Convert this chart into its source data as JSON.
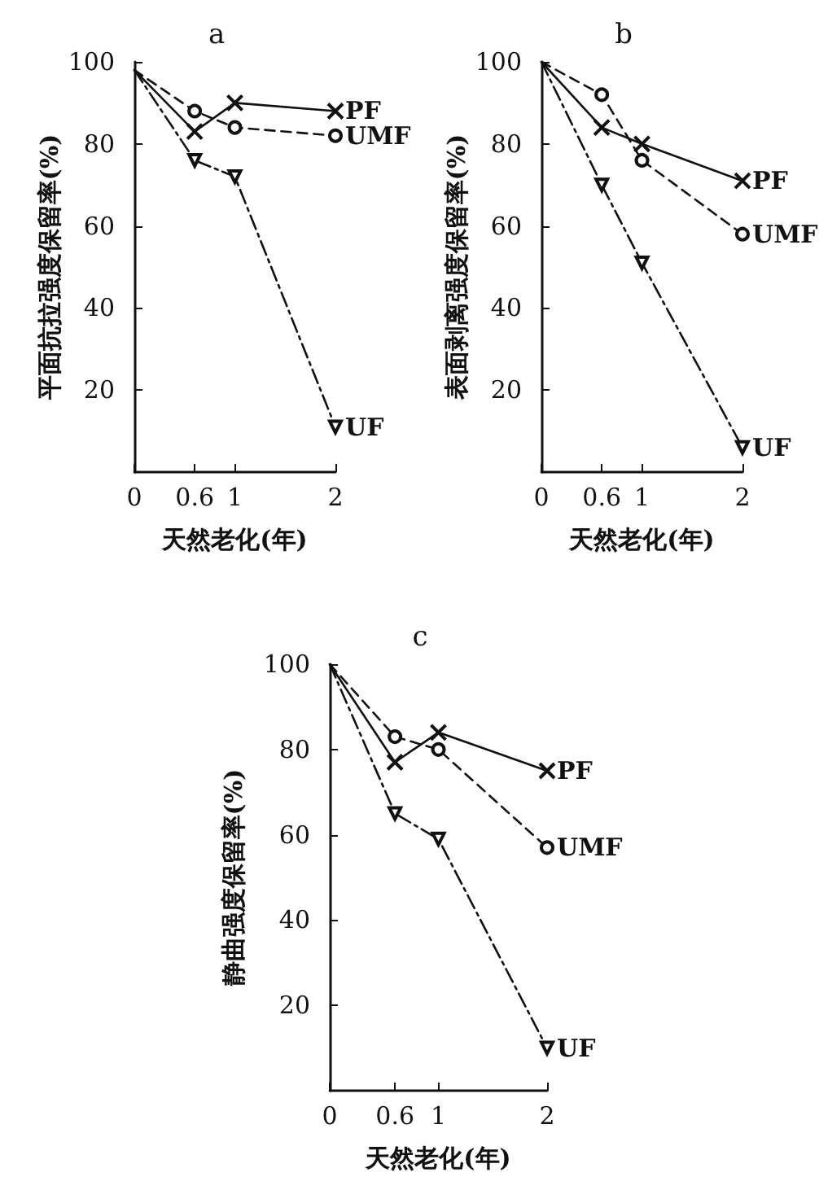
{
  "chart_data": [
    {
      "type": "line",
      "title": "a",
      "xlabel": "天然老化(年)",
      "ylabel": "平面抗拉强度保留率(%)",
      "x": [
        0,
        0.6,
        1,
        2
      ],
      "xlim": [
        0,
        2
      ],
      "xticks": [
        0,
        0.6,
        1,
        2
      ],
      "ylim": [
        0,
        100
      ],
      "yticks": [
        20,
        40,
        60,
        80,
        100
      ],
      "grid": false,
      "legend": false,
      "series": [
        {
          "name": "PF",
          "color": "#111111",
          "marker": "cross",
          "line_style": "solid",
          "values": [
            98,
            83,
            90,
            88
          ]
        },
        {
          "name": "UMF",
          "color": "#111111",
          "marker": "circle",
          "line_style": "dashed",
          "values": [
            98,
            88,
            84,
            82
          ]
        },
        {
          "name": "UF",
          "color": "#111111",
          "marker": "triangle",
          "line_style": "dashdot",
          "values": [
            98,
            76,
            72,
            11
          ]
        }
      ]
    },
    {
      "type": "line",
      "title": "b",
      "xlabel": "天然老化(年)",
      "ylabel": "表面剥离强度保留率(%)",
      "x": [
        0,
        0.6,
        1,
        2
      ],
      "xlim": [
        0,
        2
      ],
      "xticks": [
        0,
        0.6,
        1,
        2
      ],
      "ylim": [
        0,
        100
      ],
      "yticks": [
        20,
        40,
        60,
        80,
        100
      ],
      "grid": false,
      "legend": false,
      "series": [
        {
          "name": "PF",
          "color": "#111111",
          "marker": "cross",
          "line_style": "solid",
          "values": [
            100,
            84,
            80,
            71
          ]
        },
        {
          "name": "UMF",
          "color": "#111111",
          "marker": "circle",
          "line_style": "dashed",
          "values": [
            100,
            92,
            76,
            58
          ]
        },
        {
          "name": "UF",
          "color": "#111111",
          "marker": "triangle",
          "line_style": "dashdot",
          "values": [
            100,
            70,
            51,
            6
          ]
        }
      ]
    },
    {
      "type": "line",
      "title": "c",
      "xlabel": "天然老化(年)",
      "ylabel": "静曲强度保留率(%)",
      "x": [
        0,
        0.6,
        1,
        2
      ],
      "xlim": [
        0,
        2
      ],
      "xticks": [
        0,
        0.6,
        1,
        2
      ],
      "ylim": [
        0,
        100
      ],
      "yticks": [
        20,
        40,
        60,
        80,
        100
      ],
      "grid": false,
      "legend": false,
      "series": [
        {
          "name": "PF",
          "color": "#111111",
          "marker": "cross",
          "line_style": "solid",
          "values": [
            100,
            77,
            84,
            75
          ]
        },
        {
          "name": "UMF",
          "color": "#111111",
          "marker": "circle",
          "line_style": "dashed",
          "values": [
            100,
            83,
            80,
            57
          ]
        },
        {
          "name": "UF",
          "color": "#111111",
          "marker": "triangle",
          "line_style": "dashdot",
          "values": [
            100,
            65,
            59,
            10
          ]
        }
      ]
    }
  ]
}
